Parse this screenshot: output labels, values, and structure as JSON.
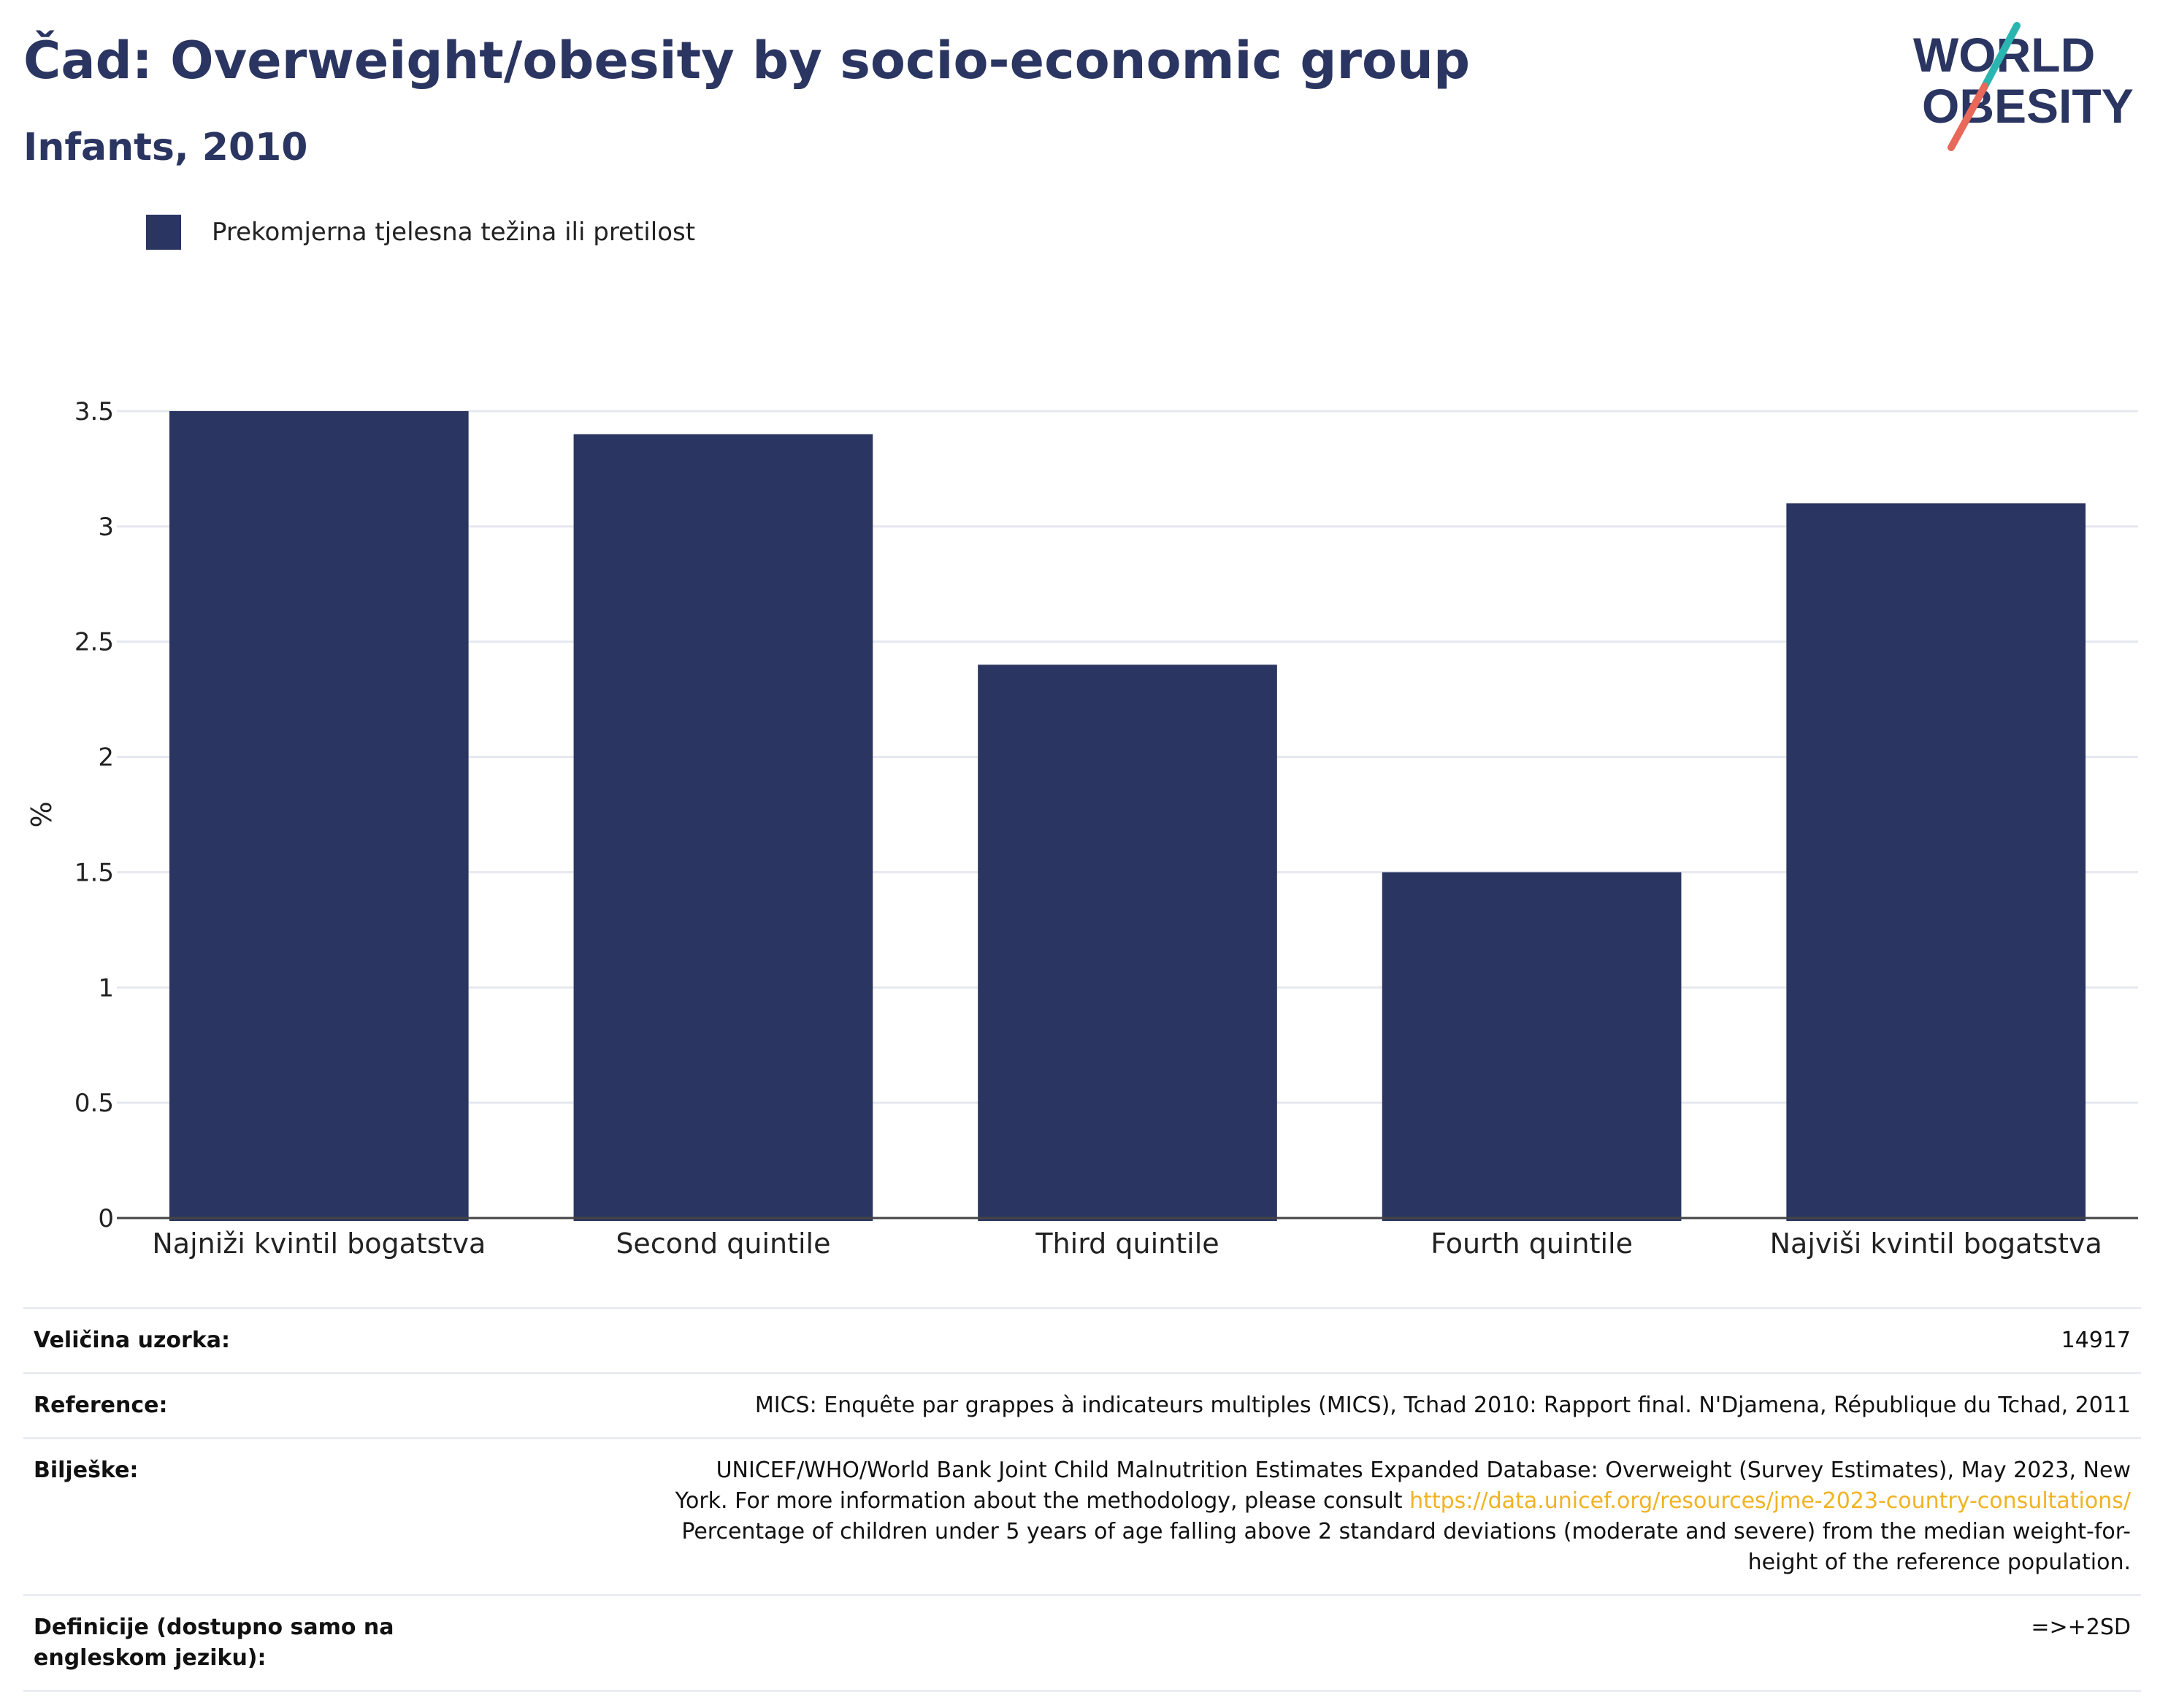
{
  "header": {
    "title": "Čad: Overweight/obesity by socio-economic group",
    "subtitle": "Infants, 2010"
  },
  "logo": {
    "line1": "WORLD",
    "line2": "OBESITY",
    "colors": {
      "text": "#2b3561",
      "slash_top": "#2bb5b0",
      "slash_bottom": "#e8685a"
    }
  },
  "chart_data": {
    "type": "bar",
    "categories": [
      "Najniži kvintil bogatstva",
      "Second quintile",
      "Third quintile",
      "Fourth quintile",
      "Najviši kvintil bogatstva"
    ],
    "series": [
      {
        "name": "Prekomjerna tjelesna težina ili pretilost",
        "values": [
          3.5,
          3.4,
          2.4,
          1.5,
          3.1
        ],
        "color": "#2b3561"
      }
    ],
    "ylabel": "%",
    "xlabel": "",
    "ylim": [
      0,
      3.5
    ],
    "yticks": [
      0,
      0.5,
      1,
      1.5,
      2,
      2.5,
      3,
      3.5
    ],
    "ytick_labels": [
      "0",
      "0.5",
      "1",
      "1.5",
      "2",
      "2.5",
      "3",
      "3.5"
    ],
    "grid": true,
    "legend": "top-left"
  },
  "info": {
    "sample_label": "Veličina uzorka:",
    "sample_value": "14917",
    "reference_label": "Reference:",
    "reference_value": "MICS: Enquête par grappes à indicateurs multiples (MICS), Tchad 2010: Rapport final. N'Djamena, République du Tchad, 2011",
    "notes_label": "Bilješke:",
    "notes_line1": "UNICEF/WHO/World Bank Joint Child Malnutrition Estimates Expanded Database: Overweight (Survey Estimates), May 2023, New",
    "notes_line2_prefix": "York. For more information about the methodology, please consult",
    "notes_link": "https://data.unicef.org/resources/jme-2023-country-consultations/",
    "notes_line3": "Percentage of children under 5 years of age falling above 2 standard deviations (moderate and severe) from the median weight-for-",
    "notes_line4": "height of the reference population.",
    "definitions_label": "Definicije (dostupno samo na engleskom jeziku):",
    "definitions_value": "=>+2SD"
  }
}
